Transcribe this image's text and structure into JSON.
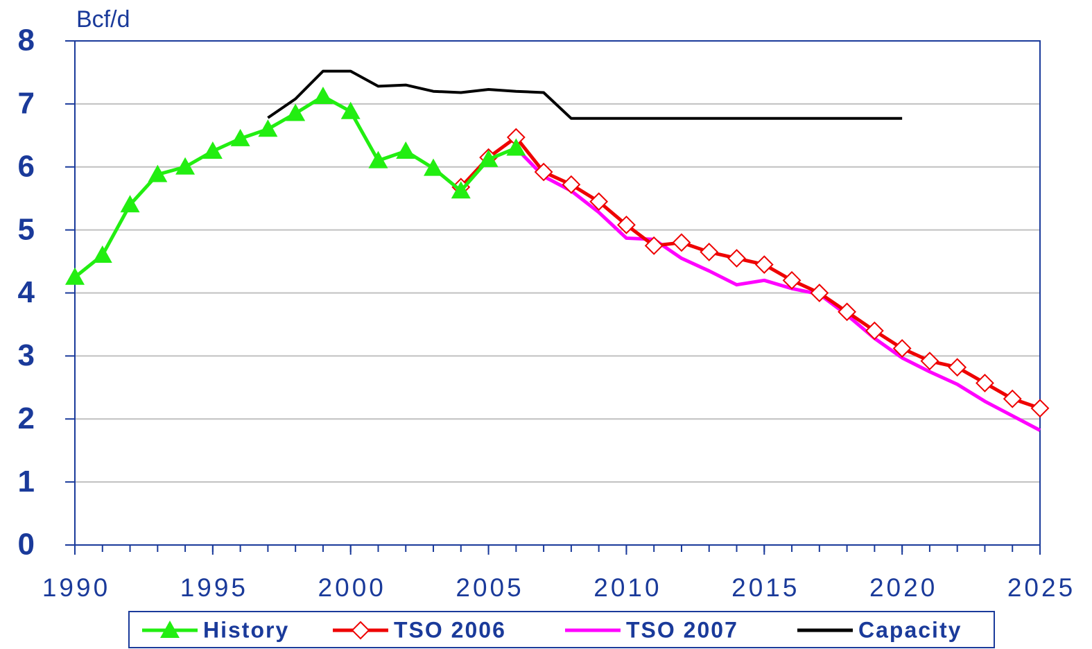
{
  "chart_data": {
    "type": "line",
    "ylabel": "Bcf/d",
    "x": [
      1990,
      1991,
      1992,
      1993,
      1994,
      1995,
      1996,
      1997,
      1998,
      1999,
      2000,
      2001,
      2002,
      2003,
      2004,
      2005,
      2006,
      2007,
      2008,
      2009,
      2010,
      2011,
      2012,
      2013,
      2014,
      2015,
      2016,
      2017,
      2018,
      2019,
      2020,
      2021,
      2022,
      2023,
      2024,
      2025
    ],
    "xlim": [
      1990,
      2025
    ],
    "xticks": [
      1990,
      1995,
      2000,
      2005,
      2010,
      2015,
      2020,
      2025
    ],
    "ylim": [
      0,
      8
    ],
    "yticks": [
      0,
      1,
      2,
      3,
      4,
      5,
      6,
      7,
      8
    ],
    "grid": true,
    "legend": "bottom",
    "series": [
      {
        "name": "History",
        "color": "#22ee11",
        "marker": "triangle",
        "values": [
          4.25,
          4.6,
          5.4,
          5.88,
          6.0,
          6.25,
          6.45,
          6.6,
          6.85,
          7.12,
          6.88,
          6.1,
          6.25,
          5.98,
          5.62,
          6.12,
          6.3,
          null,
          null,
          null,
          null,
          null,
          null,
          null,
          null,
          null,
          null,
          null,
          null,
          null,
          null,
          null,
          null,
          null,
          null,
          null
        ]
      },
      {
        "name": "TSO 2006",
        "color": "#ee0000",
        "marker": "diamond",
        "values": [
          null,
          null,
          null,
          null,
          null,
          null,
          null,
          null,
          null,
          null,
          null,
          null,
          null,
          null,
          5.68,
          6.15,
          6.47,
          5.92,
          5.72,
          5.45,
          5.08,
          4.75,
          4.8,
          4.65,
          4.55,
          4.45,
          4.2,
          4.0,
          3.7,
          3.4,
          3.12,
          2.92,
          2.82,
          2.57,
          2.32,
          2.17
        ]
      },
      {
        "name": "TSO 2007",
        "color": "#ff00ff",
        "values": [
          null,
          null,
          null,
          null,
          null,
          null,
          null,
          null,
          null,
          null,
          null,
          null,
          null,
          null,
          null,
          null,
          6.3,
          5.85,
          5.62,
          5.28,
          4.87,
          4.85,
          4.55,
          4.35,
          4.13,
          4.2,
          4.07,
          3.98,
          3.65,
          3.28,
          2.97,
          2.75,
          2.55,
          2.28,
          2.05,
          1.82
        ]
      },
      {
        "name": "Capacity",
        "color": "#000000",
        "values": [
          null,
          null,
          null,
          null,
          null,
          null,
          null,
          6.78,
          7.08,
          7.52,
          7.52,
          7.28,
          7.3,
          7.2,
          7.18,
          7.23,
          7.2,
          7.18,
          6.77,
          6.77,
          6.77,
          6.77,
          6.77,
          6.77,
          6.77,
          6.77,
          6.77,
          6.77,
          6.77,
          6.77,
          6.77,
          null,
          null,
          null,
          null,
          null
        ]
      }
    ]
  }
}
